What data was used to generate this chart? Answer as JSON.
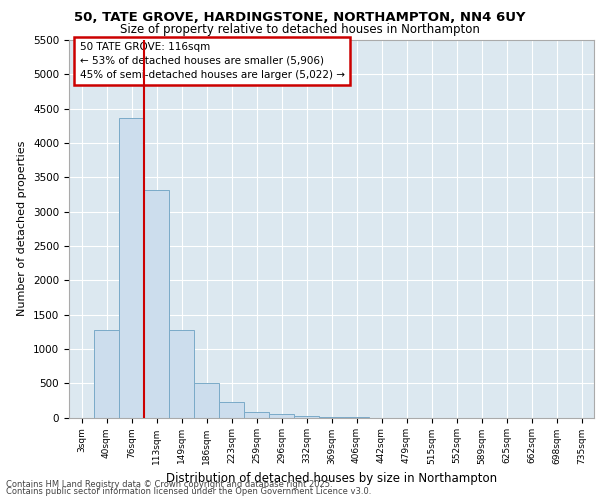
{
  "title1": "50, TATE GROVE, HARDINGSTONE, NORTHAMPTON, NN4 6UY",
  "title2": "Size of property relative to detached houses in Northampton",
  "xlabel": "Distribution of detached houses by size in Northampton",
  "ylabel": "Number of detached properties",
  "categories": [
    "3sqm",
    "40sqm",
    "76sqm",
    "113sqm",
    "149sqm",
    "186sqm",
    "223sqm",
    "259sqm",
    "296sqm",
    "332sqm",
    "369sqm",
    "406sqm",
    "442sqm",
    "479sqm",
    "515sqm",
    "552sqm",
    "589sqm",
    "625sqm",
    "662sqm",
    "698sqm",
    "735sqm"
  ],
  "values": [
    0,
    1270,
    4370,
    3310,
    1280,
    500,
    220,
    80,
    50,
    20,
    10,
    5,
    0,
    0,
    0,
    0,
    0,
    0,
    0,
    0,
    0
  ],
  "bar_color": "#ccdded",
  "bar_edge_color": "#7aaac8",
  "vline_color": "#cc0000",
  "vline_index": 2.5,
  "annotation_title": "50 TATE GROVE: 116sqm",
  "annotation_line1": "← 53% of detached houses are smaller (5,906)",
  "annotation_line2": "45% of semi-detached houses are larger (5,022) →",
  "annotation_box_color": "#cc0000",
  "ylim": [
    0,
    5500
  ],
  "yticks": [
    0,
    500,
    1000,
    1500,
    2000,
    2500,
    3000,
    3500,
    4000,
    4500,
    5000,
    5500
  ],
  "grid_color": "#ffffff",
  "plot_bg_color": "#dce8f0",
  "footer1": "Contains HM Land Registry data © Crown copyright and database right 2025.",
  "footer2": "Contains public sector information licensed under the Open Government Licence v3.0."
}
